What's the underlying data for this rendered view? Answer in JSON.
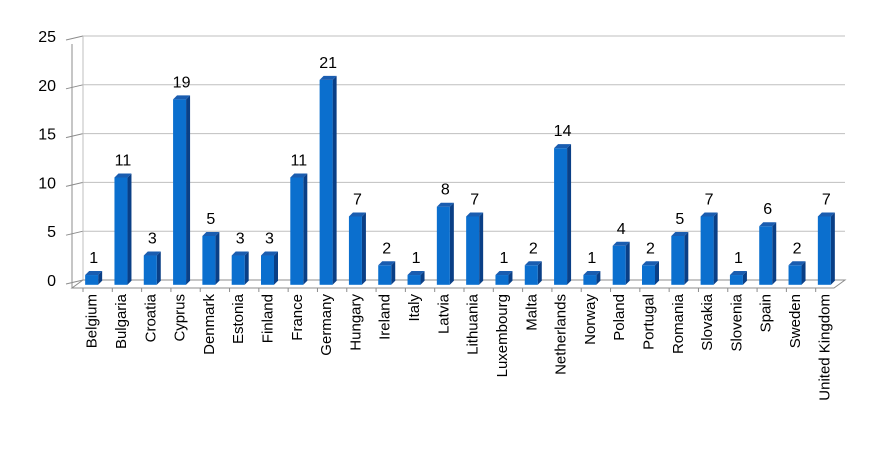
{
  "chart_data": {
    "type": "bar",
    "title": "",
    "xlabel": "",
    "ylabel": "",
    "categories": [
      "Belgium",
      "Bulgaria",
      "Croatia",
      "Cyprus",
      "Denmark",
      "Estonia",
      "Finland",
      "France",
      "Germany",
      "Hungary",
      "Ireland",
      "Italy",
      "Latvia",
      "Lithuania",
      "Luxembourg",
      "Malta",
      "Netherlands",
      "Norway",
      "Poland",
      "Portugal",
      "Romania",
      "Slovakia",
      "Slovenia",
      "Spain",
      "Sweden",
      "United Kingdom"
    ],
    "values": [
      1,
      11,
      3,
      19,
      5,
      3,
      3,
      11,
      21,
      7,
      2,
      1,
      8,
      7,
      1,
      2,
      14,
      1,
      4,
      2,
      5,
      7,
      1,
      6,
      2,
      7
    ],
    "ylim": [
      0,
      25
    ],
    "yticks": [
      0,
      5,
      10,
      15,
      20,
      25
    ],
    "grid": true,
    "legend": "none",
    "colors": {
      "bar_front": "#0b6fce",
      "bar_side": "#0a3f86",
      "bar_top": "#1a5db0",
      "gridline": "#bfbfbf",
      "axis": "#8c8c8c"
    }
  }
}
